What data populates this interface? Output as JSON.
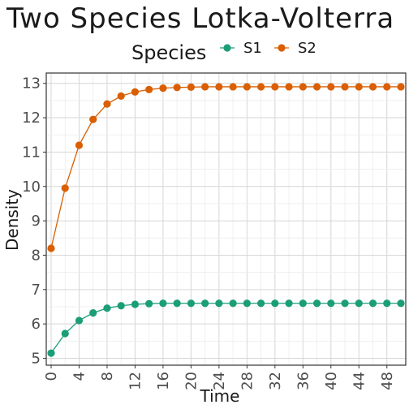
{
  "chart_data": {
    "type": "line",
    "title": "Two Species Lotka-Volterra",
    "xlabel": "Time",
    "ylabel": "Density",
    "legend": {
      "title": "Species",
      "position": "top",
      "entries": [
        "S1",
        "S2"
      ]
    },
    "xlim": [
      0,
      50
    ],
    "ylim": [
      4.8,
      13.3
    ],
    "xticks": [
      0,
      4,
      8,
      12,
      16,
      20,
      24,
      28,
      32,
      36,
      40,
      44,
      48
    ],
    "yticks": [
      5,
      6,
      7,
      8,
      9,
      10,
      11,
      12,
      13
    ],
    "grid": true,
    "x": [
      0,
      2,
      4,
      6,
      8,
      10,
      12,
      14,
      16,
      18,
      20,
      22,
      24,
      26,
      28,
      30,
      32,
      34,
      36,
      38,
      40,
      42,
      44,
      46,
      48,
      50
    ],
    "series": [
      {
        "name": "S1",
        "color": "#1b9e77",
        "values": [
          5.15,
          5.72,
          6.1,
          6.32,
          6.46,
          6.53,
          6.57,
          6.59,
          6.6,
          6.6,
          6.6,
          6.6,
          6.6,
          6.6,
          6.6,
          6.6,
          6.6,
          6.6,
          6.6,
          6.6,
          6.6,
          6.6,
          6.6,
          6.6,
          6.6,
          6.6
        ]
      },
      {
        "name": "S2",
        "color": "#d95f02",
        "values": [
          8.2,
          9.95,
          11.2,
          11.95,
          12.4,
          12.63,
          12.75,
          12.82,
          12.86,
          12.88,
          12.89,
          12.9,
          12.9,
          12.9,
          12.9,
          12.9,
          12.9,
          12.9,
          12.9,
          12.9,
          12.9,
          12.9,
          12.9,
          12.9,
          12.9,
          12.9
        ]
      }
    ]
  }
}
